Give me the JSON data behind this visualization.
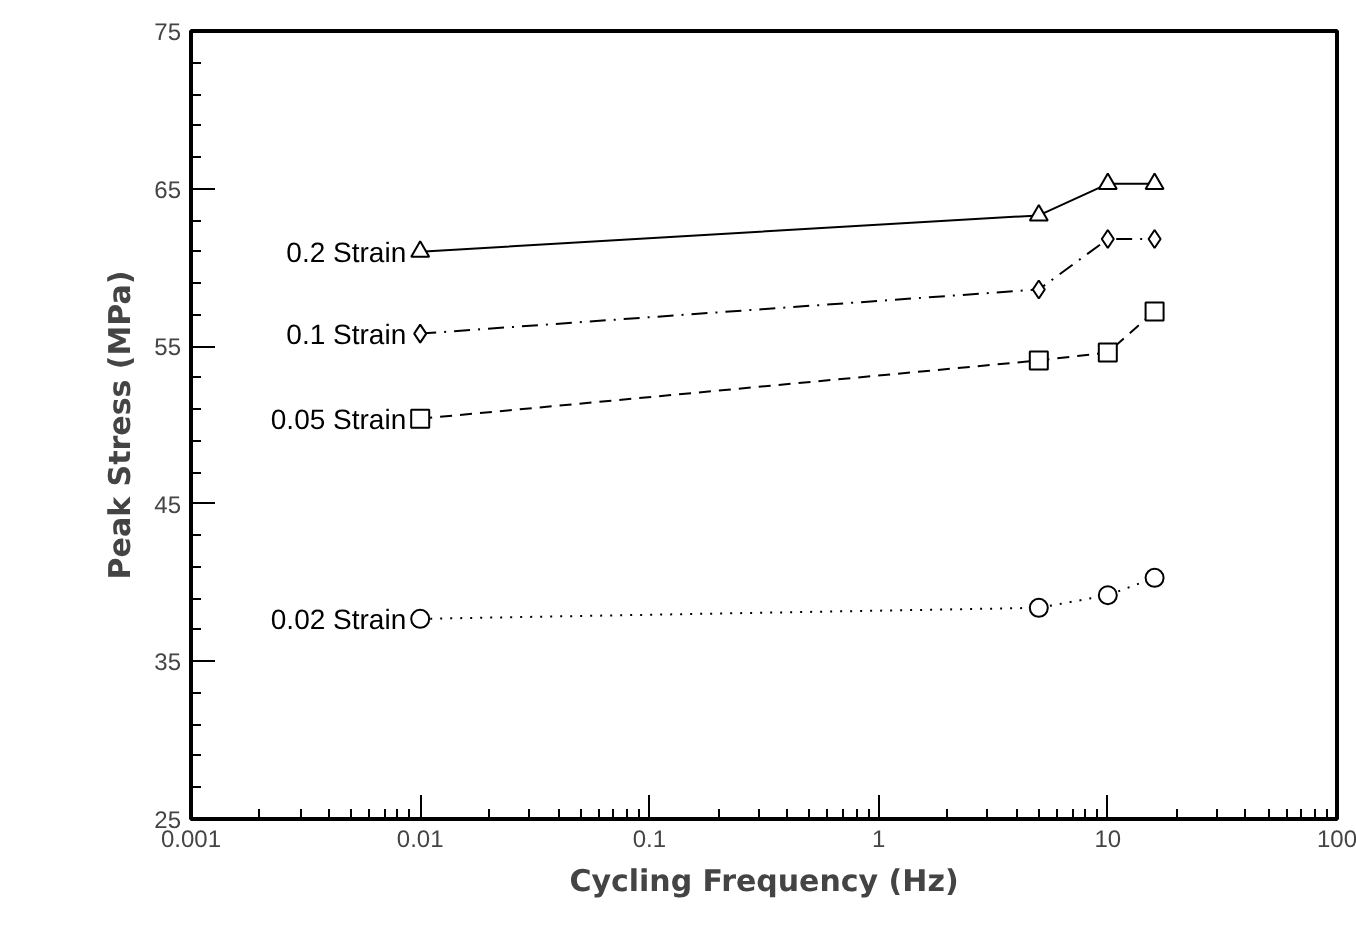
{
  "chart_data": {
    "type": "line",
    "xlabel": "Cycling Frequency (Hz)",
    "ylabel": "Peak Stress (MPa)",
    "x": [
      0.01,
      5,
      10,
      16
    ],
    "log": "x",
    "grid": false,
    "xlim": [
      0.001,
      100
    ],
    "xticks": [
      0.001,
      0.01,
      0.1,
      1,
      10,
      100
    ],
    "ylim": [
      25,
      75
    ],
    "yticks": [
      25,
      35,
      45,
      55,
      65,
      75
    ],
    "series": [
      {
        "name": "0.2 Strain",
        "color": "#000000",
        "marker": "triangle",
        "line_style": "solid",
        "values": [
          61.0,
          63.3,
          65.3,
          65.3
        ]
      },
      {
        "name": "0.1 Strain",
        "color": "#000000",
        "marker": "diamond",
        "line_style": "dashdot",
        "values": [
          55.8,
          58.6,
          61.8,
          61.8
        ]
      },
      {
        "name": "0.05 Strain",
        "color": "#000000",
        "marker": "square",
        "line_style": "dashed",
        "values": [
          50.4,
          54.1,
          54.6,
          57.2
        ]
      },
      {
        "name": "0.02 Strain",
        "color": "#000000",
        "marker": "circle",
        "line_style": "dotted",
        "values": [
          37.7,
          38.4,
          39.2,
          40.3
        ]
      }
    ]
  }
}
